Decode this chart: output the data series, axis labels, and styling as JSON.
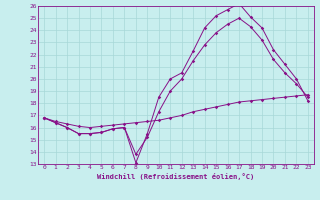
{
  "xlabel": "Windchill (Refroidissement éolien,°C)",
  "xlim": [
    -0.5,
    23.5
  ],
  "ylim": [
    13,
    26
  ],
  "xticks": [
    0,
    1,
    2,
    3,
    4,
    5,
    6,
    7,
    8,
    9,
    10,
    11,
    12,
    13,
    14,
    15,
    16,
    17,
    18,
    19,
    20,
    21,
    22,
    23
  ],
  "yticks": [
    13,
    14,
    15,
    16,
    17,
    18,
    19,
    20,
    21,
    22,
    23,
    24,
    25,
    26
  ],
  "background_color": "#c8eeee",
  "grid_color": "#a8d8d8",
  "line_color": "#881188",
  "line1_x": [
    0,
    1,
    2,
    3,
    4,
    5,
    6,
    7,
    8,
    9,
    10,
    11,
    12,
    13,
    14,
    15,
    16,
    17,
    18,
    19,
    20,
    21,
    22,
    23
  ],
  "line1_y": [
    16.8,
    16.4,
    16.0,
    15.5,
    15.5,
    15.6,
    15.9,
    16.0,
    13.1,
    15.5,
    18.5,
    20.0,
    20.5,
    22.3,
    24.2,
    25.2,
    25.7,
    26.2,
    25.1,
    24.2,
    22.4,
    21.2,
    20.0,
    18.2
  ],
  "line2_x": [
    0,
    1,
    2,
    3,
    4,
    5,
    6,
    7,
    8,
    9,
    10,
    11,
    12,
    13,
    14,
    15,
    16,
    17,
    18,
    19,
    20,
    21,
    22,
    23
  ],
  "line2_y": [
    16.8,
    16.4,
    16.0,
    15.5,
    15.5,
    15.6,
    15.9,
    16.0,
    13.8,
    15.2,
    17.3,
    19.0,
    20.0,
    21.5,
    22.8,
    23.8,
    24.5,
    25.0,
    24.3,
    23.2,
    21.6,
    20.5,
    19.6,
    18.5
  ],
  "line3_x": [
    0,
    1,
    2,
    3,
    4,
    5,
    6,
    7,
    8,
    9,
    10,
    11,
    12,
    13,
    14,
    15,
    16,
    17,
    18,
    19,
    20,
    21,
    22,
    23
  ],
  "line3_y": [
    16.8,
    16.5,
    16.3,
    16.1,
    16.0,
    16.1,
    16.2,
    16.3,
    16.4,
    16.5,
    16.6,
    16.8,
    17.0,
    17.3,
    17.5,
    17.7,
    17.9,
    18.1,
    18.2,
    18.3,
    18.4,
    18.5,
    18.6,
    18.7
  ]
}
